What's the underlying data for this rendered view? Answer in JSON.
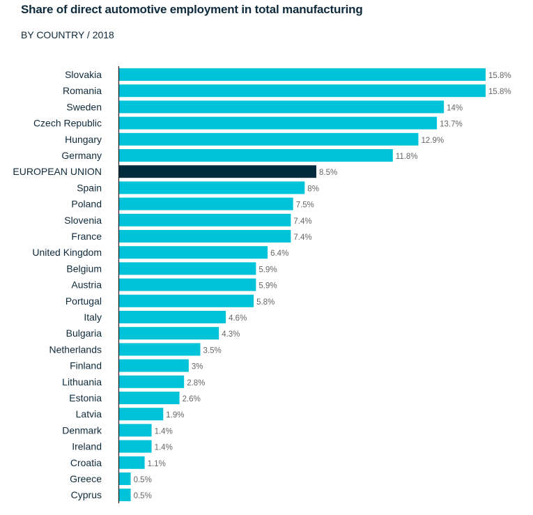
{
  "chart_data": {
    "type": "bar",
    "orientation": "horizontal",
    "title": "Share of direct automotive employment in total manufacturing",
    "subtitle": "BY COUNTRY / 2018",
    "categories": [
      "Slovakia",
      "Romania",
      "Sweden",
      "Czech Republic",
      "Hungary",
      "Germany",
      "EUROPEAN UNION",
      "Spain",
      "Poland",
      "Slovenia",
      "France",
      "United Kingdom",
      "Belgium",
      "Austria",
      "Portugal",
      "Italy",
      "Bulgaria",
      "Netherlands",
      "Finland",
      "Lithuania",
      "Estonia",
      "Latvia",
      "Denmark",
      "Ireland",
      "Croatia",
      "Greece",
      "Cyprus"
    ],
    "values": [
      15.8,
      15.8,
      14,
      13.7,
      12.9,
      11.8,
      8.5,
      8,
      7.5,
      7.4,
      7.4,
      6.4,
      5.9,
      5.9,
      5.8,
      4.6,
      4.3,
      3.5,
      3,
      2.8,
      2.6,
      1.9,
      1.4,
      1.4,
      1.1,
      0.5,
      0.5
    ],
    "value_labels": [
      "15.8%",
      "15.8%",
      "14%",
      "13.7%",
      "12.9%",
      "11.8%",
      "8.5%",
      "8%",
      "7.5%",
      "7.4%",
      "7.4%",
      "6.4%",
      "5.9%",
      "5.9%",
      "5.8%",
      "4.6%",
      "4.3%",
      "3.5%",
      "3%",
      "2.8%",
      "2.6%",
      "1.9%",
      "1.4%",
      "1.4%",
      "1.1%",
      "0.5%",
      "0.5%"
    ],
    "highlight_category": "EUROPEAN UNION",
    "xlim": [
      0,
      15.8
    ],
    "grid": false,
    "legend": "none",
    "colors": {
      "bar": "#00c3d9",
      "highlight": "#002b3d",
      "axis": "#1a1a1a"
    }
  }
}
